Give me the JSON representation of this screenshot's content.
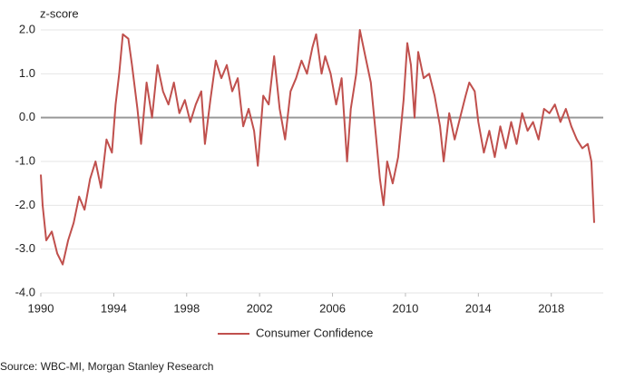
{
  "chart_data": {
    "type": "line",
    "ylabel": "z-score",
    "source": "Source: WBC-MI, Morgan Stanley Research",
    "xlim": [
      1990,
      2020.85
    ],
    "ylim": [
      -4,
      2
    ],
    "xticks": [
      1990,
      1994,
      1998,
      2002,
      2006,
      2010,
      2014,
      2018
    ],
    "yticks": [
      {
        "value": 2,
        "label": "2.0"
      },
      {
        "value": 1,
        "label": "1.0"
      },
      {
        "value": 0,
        "label": "0.0"
      },
      {
        "value": -1,
        "label": "-1.0"
      },
      {
        "value": -2,
        "label": "-2.0"
      },
      {
        "value": -3,
        "label": "-3.0"
      },
      {
        "value": -4,
        "label": "-4.0"
      }
    ],
    "grid": true,
    "legend": "bottom",
    "series": [
      {
        "name": "Consumer Confidence",
        "color": "#c0504d",
        "x": [
          1990.0,
          1990.1,
          1990.3,
          1990.6,
          1990.9,
          1991.2,
          1991.5,
          1991.8,
          1992.1,
          1992.4,
          1992.7,
          1993.0,
          1993.3,
          1993.6,
          1993.9,
          1994.1,
          1994.3,
          1994.5,
          1994.8,
          1995.0,
          1995.3,
          1995.5,
          1995.8,
          1996.1,
          1996.4,
          1996.7,
          1997.0,
          1997.3,
          1997.6,
          1997.9,
          1998.2,
          1998.5,
          1998.8,
          1999.0,
          1999.3,
          1999.6,
          1999.9,
          2000.2,
          2000.5,
          2000.8,
          2001.1,
          2001.4,
          2001.7,
          2001.9,
          2002.2,
          2002.5,
          2002.8,
          2003.1,
          2003.4,
          2003.7,
          2004.0,
          2004.3,
          2004.6,
          2004.9,
          2005.1,
          2005.4,
          2005.6,
          2005.9,
          2006.2,
          2006.5,
          2006.8,
          2007.0,
          2007.3,
          2007.5,
          2007.8,
          2008.1,
          2008.4,
          2008.6,
          2008.8,
          2009.0,
          2009.3,
          2009.6,
          2009.9,
          2010.1,
          2010.3,
          2010.5,
          2010.7,
          2011.0,
          2011.3,
          2011.6,
          2011.9,
          2012.1,
          2012.4,
          2012.7,
          2013.0,
          2013.3,
          2013.5,
          2013.8,
          2014.0,
          2014.3,
          2014.6,
          2014.9,
          2015.2,
          2015.5,
          2015.8,
          2016.1,
          2016.4,
          2016.7,
          2017.0,
          2017.3,
          2017.6,
          2017.9,
          2018.2,
          2018.5,
          2018.8,
          2019.1,
          2019.4,
          2019.7,
          2020.0,
          2020.2,
          2020.35
        ],
        "values": [
          -1.3,
          -2.0,
          -2.8,
          -2.6,
          -3.1,
          -3.35,
          -2.8,
          -2.4,
          -1.8,
          -2.1,
          -1.4,
          -1.0,
          -1.6,
          -0.5,
          -0.8,
          0.3,
          1.0,
          1.9,
          1.8,
          1.2,
          0.2,
          -0.6,
          0.8,
          0.0,
          1.2,
          0.6,
          0.3,
          0.8,
          0.1,
          0.4,
          -0.1,
          0.3,
          0.6,
          -0.6,
          0.4,
          1.3,
          0.9,
          1.2,
          0.6,
          0.9,
          -0.2,
          0.2,
          -0.3,
          -1.1,
          0.5,
          0.3,
          1.4,
          0.2,
          -0.5,
          0.6,
          0.9,
          1.3,
          1.0,
          1.6,
          1.9,
          1.0,
          1.4,
          1.0,
          0.3,
          0.9,
          -1.0,
          0.2,
          1.0,
          2.0,
          1.4,
          0.8,
          -0.5,
          -1.4,
          -2.0,
          -1.0,
          -1.5,
          -0.9,
          0.4,
          1.7,
          1.2,
          0.0,
          1.5,
          0.9,
          1.0,
          0.5,
          -0.2,
          -1.0,
          0.1,
          -0.5,
          0.0,
          0.5,
          0.8,
          0.6,
          -0.1,
          -0.8,
          -0.3,
          -0.9,
          -0.2,
          -0.7,
          -0.1,
          -0.6,
          0.1,
          -0.3,
          -0.1,
          -0.5,
          0.2,
          0.1,
          0.3,
          -0.1,
          0.2,
          -0.2,
          -0.5,
          -0.7,
          -0.6,
          -1.0,
          -2.4
        ]
      }
    ]
  }
}
